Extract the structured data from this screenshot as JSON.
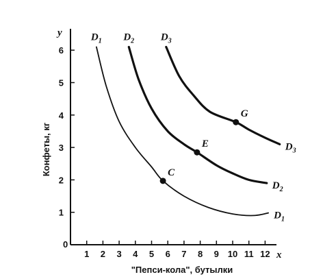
{
  "chart_data": {
    "type": "line",
    "title": "",
    "xlabel": "\"Пепси-кола\", бутылки",
    "ylabel": "Конфеты, кг",
    "x_axis_var": "x",
    "y_axis_var": "y",
    "xlim": [
      0,
      12.8
    ],
    "ylim": [
      0,
      6.4
    ],
    "x_ticks": [
      1,
      2,
      3,
      4,
      5,
      6,
      7,
      8,
      9,
      10,
      11,
      12
    ],
    "y_ticks": [
      1,
      2,
      3,
      4,
      5,
      6
    ],
    "origin_label": "0",
    "grid": false,
    "series": [
      {
        "name": "D1",
        "label_base": "D",
        "label_sub": "1",
        "weight": "thin",
        "points": [
          [
            1.6,
            6.1
          ],
          [
            2.2,
            4.9
          ],
          [
            3,
            3.8
          ],
          [
            4,
            3.0
          ],
          [
            5,
            2.4
          ],
          [
            5.7,
            1.97
          ],
          [
            7,
            1.5
          ],
          [
            8.5,
            1.15
          ],
          [
            10,
            0.95
          ],
          [
            11.3,
            0.9
          ],
          [
            12.2,
            0.98
          ]
        ]
      },
      {
        "name": "D2",
        "label_base": "D",
        "label_sub": "2",
        "weight": "thick",
        "points": [
          [
            3.6,
            6.1
          ],
          [
            4.2,
            5.1
          ],
          [
            5,
            4.2
          ],
          [
            6,
            3.5
          ],
          [
            7,
            3.1
          ],
          [
            7.8,
            2.85
          ],
          [
            9,
            2.45
          ],
          [
            10,
            2.2
          ],
          [
            11,
            2.0
          ],
          [
            12.1,
            1.9
          ]
        ]
      },
      {
        "name": "D3",
        "label_base": "D",
        "label_sub": "3",
        "weight": "thick",
        "points": [
          [
            5.9,
            6.1
          ],
          [
            6.7,
            5.2
          ],
          [
            7.6,
            4.6
          ],
          [
            8.6,
            4.1
          ],
          [
            10.2,
            3.78
          ],
          [
            11,
            3.55
          ],
          [
            12,
            3.3
          ],
          [
            12.9,
            3.1
          ]
        ]
      }
    ],
    "points": [
      {
        "label": "C",
        "x": 5.7,
        "y": 1.97
      },
      {
        "label": "E",
        "x": 7.8,
        "y": 2.85
      },
      {
        "label": "G",
        "x": 10.2,
        "y": 3.78
      }
    ]
  }
}
